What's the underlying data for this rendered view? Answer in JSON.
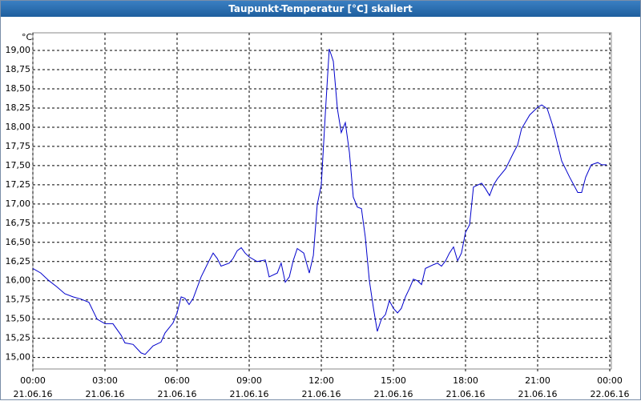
{
  "chart_data": {
    "type": "line",
    "title": "Taupunkt-Temperatur [°C] skaliert",
    "y_label": "°C",
    "color": "#0000cc",
    "grid": true,
    "x": [
      0,
      0.33,
      0.67,
      1,
      1.33,
      1.67,
      2,
      2.33,
      2.67,
      3,
      3.33,
      3.67,
      3.83,
      4.17,
      4.5,
      4.67,
      5,
      5.33,
      5.5,
      5.83,
      6,
      6.17,
      6.33,
      6.5,
      6.67,
      7,
      7.33,
      7.5,
      7.67,
      7.83,
      8.17,
      8.33,
      8.5,
      8.67,
      8.83,
      9,
      9.33,
      9.67,
      9.83,
      10.17,
      10.33,
      10.5,
      10.67,
      10.83,
      11,
      11.27,
      11.5,
      11.67,
      11.83,
      12,
      12.17,
      12.33,
      12.5,
      12.67,
      12.83,
      13,
      13.17,
      13.33,
      13.5,
      13.67,
      13.83,
      14,
      14.17,
      14.33,
      14.5,
      14.67,
      14.83,
      15,
      15.17,
      15.33,
      15.5,
      15.67,
      15.83,
      16,
      16.17,
      16.33,
      16.67,
      16.83,
      17,
      17.17,
      17.33,
      17.5,
      17.67,
      17.83,
      18,
      18.17,
      18.33,
      18.67,
      18.83,
      19,
      19.17,
      19.33,
      19.67,
      20,
      20.17,
      20.33,
      20.67,
      21,
      21.17,
      21.4,
      21.67,
      22,
      22.33,
      22.67,
      22.83,
      23,
      23.23,
      23.5,
      23.67,
      23.87
    ],
    "values": [
      16.16,
      16.1,
      16.0,
      15.92,
      15.83,
      15.79,
      15.76,
      15.72,
      15.5,
      15.44,
      15.44,
      15.29,
      15.19,
      15.17,
      15.06,
      15.04,
      15.15,
      15.2,
      15.32,
      15.45,
      15.58,
      15.79,
      15.77,
      15.69,
      15.77,
      16.05,
      16.26,
      16.36,
      16.29,
      16.19,
      16.23,
      16.29,
      16.39,
      16.43,
      16.36,
      16.31,
      16.25,
      16.27,
      16.05,
      16.1,
      16.23,
      15.98,
      16.05,
      16.26,
      16.42,
      16.36,
      16.1,
      16.33,
      16.99,
      17.25,
      18.19,
      19.02,
      18.86,
      18.24,
      17.93,
      18.06,
      17.67,
      17.09,
      16.96,
      16.94,
      16.57,
      16.0,
      15.64,
      15.34,
      15.5,
      15.56,
      15.74,
      15.64,
      15.58,
      15.64,
      15.79,
      15.9,
      16.02,
      16.0,
      15.95,
      16.16,
      16.21,
      16.23,
      16.19,
      16.26,
      16.36,
      16.44,
      16.26,
      16.36,
      16.63,
      16.73,
      17.22,
      17.27,
      17.2,
      17.11,
      17.25,
      17.33,
      17.46,
      17.67,
      17.77,
      17.98,
      18.16,
      18.26,
      18.29,
      18.24,
      17.98,
      17.56,
      17.35,
      17.15,
      17.15,
      17.35,
      17.51,
      17.54,
      17.51,
      17.51
    ],
    "xlim": [
      0,
      24
    ],
    "xticks": [
      {
        "value": 0,
        "label": "00:00 21.06.16"
      },
      {
        "value": 3,
        "label": "03:00 21.06.16"
      },
      {
        "value": 6,
        "label": "06:00 21.06.16"
      },
      {
        "value": 9,
        "label": "09:00 21.06.16"
      },
      {
        "value": 12,
        "label": "12:00 21.06.16"
      },
      {
        "value": 15,
        "label": "15:00 21.06.16"
      },
      {
        "value": 18,
        "label": "18:00 21.06.16"
      },
      {
        "value": 21,
        "label": "21:00 21.06.16"
      },
      {
        "value": 24,
        "label": "00:00 22.06.16"
      }
    ],
    "ylim": [
      14.85,
      19.23
    ],
    "yticks": [
      {
        "value": 15,
        "label": "15,00"
      },
      {
        "value": 15.25,
        "label": "15,25"
      },
      {
        "value": 15.5,
        "label": "15,50"
      },
      {
        "value": 15.75,
        "label": "15,75"
      },
      {
        "value": 16,
        "label": "16,00"
      },
      {
        "value": 16.25,
        "label": "16,25"
      },
      {
        "value": 16.5,
        "label": "16,50"
      },
      {
        "value": 16.75,
        "label": "16,75"
      },
      {
        "value": 17,
        "label": "17,00"
      },
      {
        "value": 17.25,
        "label": "17,25"
      },
      {
        "value": 17.5,
        "label": "17,50"
      },
      {
        "value": 17.75,
        "label": "17,75"
      },
      {
        "value": 18,
        "label": "18,00"
      },
      {
        "value": 18.25,
        "label": "18,25"
      },
      {
        "value": 18.5,
        "label": "18,50"
      },
      {
        "value": 18.75,
        "label": "18,75"
      },
      {
        "value": 19,
        "label": "19,00"
      }
    ]
  }
}
